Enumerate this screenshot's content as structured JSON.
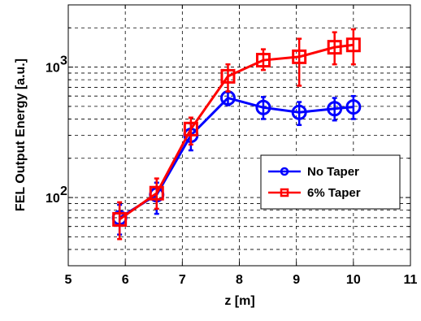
{
  "chart_data": {
    "type": "line",
    "title": "",
    "xlabel": "z [m]",
    "ylabel": "FEL Output Energy [a.u.]",
    "xlim": [
      5,
      11
    ],
    "ylim": [
      30,
      3000
    ],
    "yscale": "log",
    "grid": true,
    "x_ticks": [
      "5",
      "6",
      "7",
      "8",
      "9",
      "10",
      "11"
    ],
    "y_ticks": [
      {
        "value": 100,
        "base": "10",
        "exp": "2"
      },
      {
        "value": 1000,
        "base": "10",
        "exp": "3"
      }
    ],
    "legend_position": "right",
    "series": [
      {
        "name": "No Taper",
        "color": "#0000ff",
        "marker": "circle",
        "x": [
          5.9,
          6.55,
          7.15,
          7.8,
          8.42,
          9.05,
          9.67,
          10.0
        ],
        "y": [
          70,
          105,
          300,
          580,
          490,
          450,
          480,
          495
        ],
        "err_low": [
          52,
          75,
          230,
          510,
          400,
          360,
          390,
          400
        ],
        "err_high": [
          88,
          130,
          370,
          640,
          590,
          540,
          580,
          600
        ]
      },
      {
        "name": "6% Taper",
        "color": "#ff0000",
        "marker": "square",
        "x": [
          5.9,
          6.55,
          7.15,
          7.8,
          8.42,
          9.05,
          9.67,
          10.0
        ],
        "y": [
          68,
          108,
          335,
          850,
          1130,
          1200,
          1420,
          1480
        ],
        "err_low": [
          48,
          82,
          255,
          650,
          950,
          720,
          1050,
          1050
        ],
        "err_high": [
          92,
          140,
          410,
          1050,
          1370,
          1650,
          1850,
          1950
        ]
      }
    ]
  }
}
